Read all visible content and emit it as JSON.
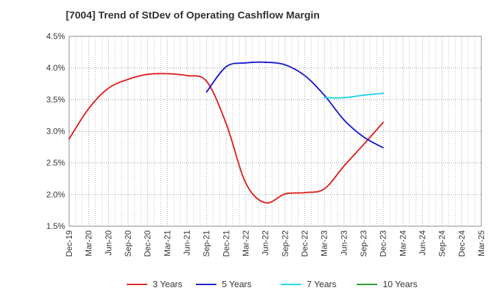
{
  "chart_data": {
    "type": "line",
    "title": "[7004]  Trend of StDev of Operating Cashflow Margin",
    "xlabel": "",
    "ylabel": "",
    "ylim": [
      1.5,
      4.5
    ],
    "yticks": [
      "1.5%",
      "2.0%",
      "2.5%",
      "3.0%",
      "3.5%",
      "4.0%",
      "4.5%"
    ],
    "ytick_values": [
      1.5,
      2.0,
      2.5,
      3.0,
      3.5,
      4.0,
      4.5
    ],
    "categories": [
      "Dec-19",
      "Mar-20",
      "Jun-20",
      "Sep-20",
      "Dec-20",
      "Mar-21",
      "Jun-21",
      "Sep-21",
      "Dec-21",
      "Mar-22",
      "Jun-22",
      "Sep-22",
      "Dec-22",
      "Mar-23",
      "Jun-23",
      "Sep-23",
      "Dec-23",
      "Mar-24",
      "Jun-24",
      "Sep-24",
      "Dec-24",
      "Mar-25"
    ],
    "grid": true,
    "legend_position": "bottom",
    "series": [
      {
        "name": "3 Years",
        "color": "#dd2222",
        "values": [
          2.88,
          3.36,
          3.68,
          3.82,
          3.9,
          3.91,
          3.88,
          3.79,
          3.12,
          2.18,
          1.87,
          2.01,
          2.03,
          2.09,
          2.45,
          2.79,
          3.14,
          null,
          null,
          null,
          null,
          null
        ]
      },
      {
        "name": "5 Years",
        "color": "#1a1acc",
        "values": [
          null,
          null,
          null,
          null,
          null,
          null,
          null,
          3.62,
          4.02,
          4.08,
          4.09,
          4.05,
          3.88,
          3.57,
          3.18,
          2.91,
          2.74,
          null,
          null,
          null,
          null,
          null
        ]
      },
      {
        "name": "7 Years",
        "color": "#22d4e8",
        "values": [
          null,
          null,
          null,
          null,
          null,
          null,
          null,
          null,
          null,
          null,
          null,
          null,
          null,
          3.53,
          3.53,
          3.57,
          3.6,
          null,
          null,
          null,
          null,
          null
        ]
      },
      {
        "name": "10 Years",
        "color": "#229922",
        "values": [
          null,
          null,
          null,
          null,
          null,
          null,
          null,
          null,
          null,
          null,
          null,
          null,
          null,
          null,
          null,
          null,
          null,
          null,
          null,
          null,
          null,
          null
        ]
      }
    ]
  }
}
